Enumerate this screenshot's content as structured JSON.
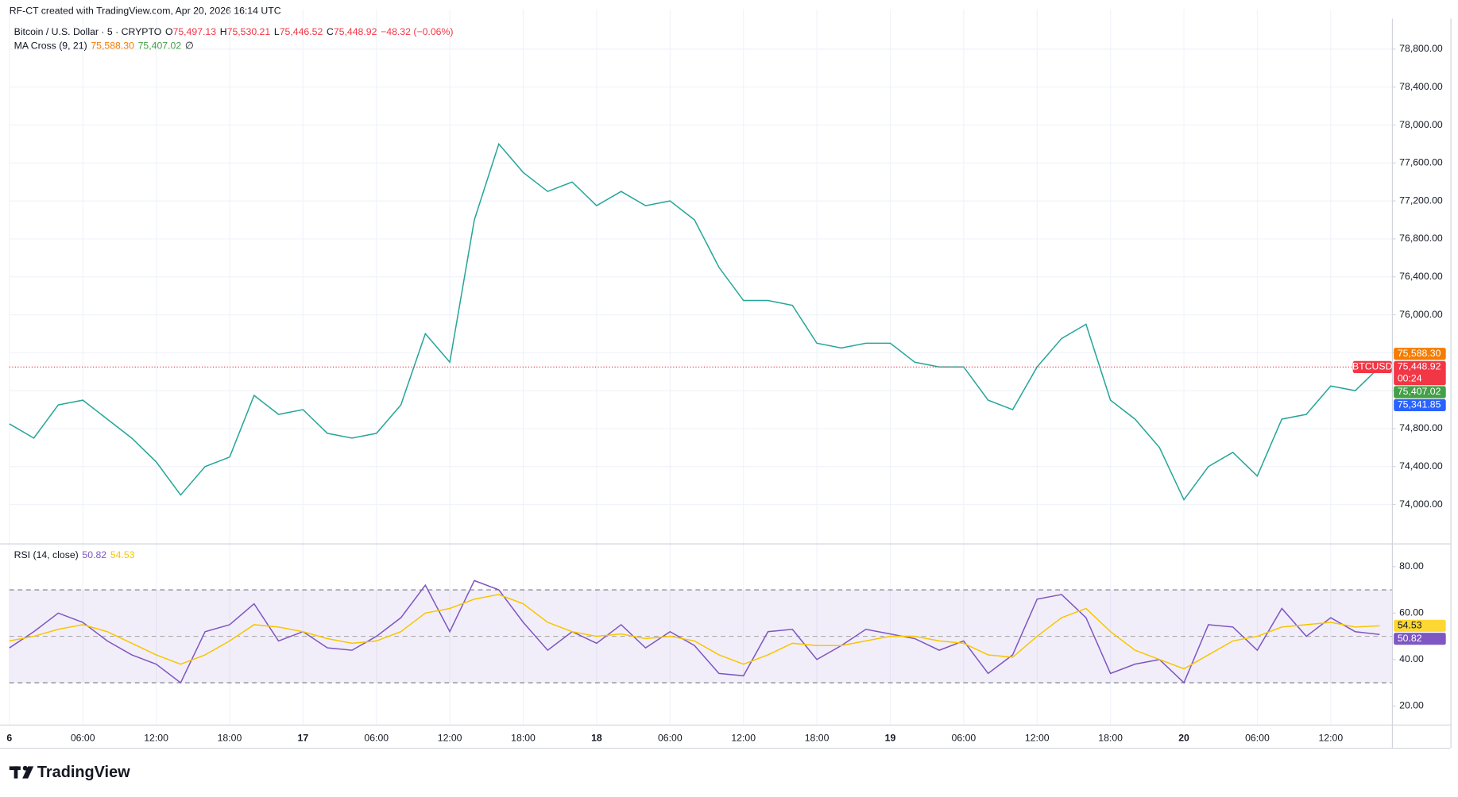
{
  "header": {
    "text": "RF-CT created with TradingView.com, Apr 20, 2026 16:14 UTC"
  },
  "chart_data": [
    {
      "type": "line",
      "title": "Bitcoin / U.S. Dollar · 5 · CRYPTO",
      "ohlc": [
        {
          "key": "O",
          "value": "75,497.13"
        },
        {
          "key": "H",
          "value": "75,530.21"
        },
        {
          "key": "L",
          "value": "75,446.52"
        },
        {
          "key": "C",
          "value": "75,448.92"
        }
      ],
      "change": "−48.32 (−0.06%)",
      "change_color": "#f23645",
      "indicator": {
        "title": "MA Cross (9, 21)",
        "values": [
          {
            "text": "75,588.30",
            "color": "#f57c00"
          },
          {
            "text": "75,407.02",
            "color": "#43a047"
          }
        ],
        "extra": "∅"
      },
      "x": [
        0,
        2,
        4,
        6,
        8,
        10,
        12,
        14,
        16,
        18,
        20,
        22,
        24,
        26,
        28,
        30,
        32,
        34,
        36,
        38,
        40,
        42,
        44,
        46,
        48,
        50,
        52,
        54,
        56,
        58,
        60,
        62,
        64,
        66,
        68,
        70,
        72,
        74,
        76,
        78,
        80,
        82,
        84,
        86,
        88,
        90,
        92,
        94,
        96,
        98,
        100,
        102,
        104,
        106,
        108,
        110,
        112
      ],
      "xlim": [
        0,
        113
      ],
      "xticks": [
        {
          "value": 0,
          "label": "6"
        },
        {
          "value": 6,
          "label": "06:00"
        },
        {
          "value": 12,
          "label": "12:00"
        },
        {
          "value": 18,
          "label": "18:00"
        },
        {
          "value": 24,
          "label": "17"
        },
        {
          "value": 30,
          "label": "06:00"
        },
        {
          "value": 36,
          "label": "12:00"
        },
        {
          "value": 42,
          "label": "18:00"
        },
        {
          "value": 48,
          "label": "18"
        },
        {
          "value": 54,
          "label": "06:00"
        },
        {
          "value": 60,
          "label": "12:00"
        },
        {
          "value": 66,
          "label": "18:00"
        },
        {
          "value": 72,
          "label": "19"
        },
        {
          "value": 78,
          "label": "06:00"
        },
        {
          "value": 84,
          "label": "12:00"
        },
        {
          "value": 90,
          "label": "18:00"
        },
        {
          "value": 96,
          "label": "20"
        },
        {
          "value": 102,
          "label": "06:00"
        },
        {
          "value": 108,
          "label": "12:00"
        }
      ],
      "series": [
        {
          "color": "#26a69a",
          "values": [
            74850,
            74700,
            75050,
            75100,
            74900,
            74700,
            74450,
            74100,
            74400,
            74500,
            75150,
            74950,
            75000,
            74750,
            74700,
            74750,
            75050,
            75800,
            75500,
            77000,
            77800,
            77500,
            77300,
            77400,
            77150,
            77300,
            77150,
            77200,
            77000,
            76500,
            76150,
            76150,
            76100,
            75700,
            75650,
            75700,
            75700,
            75500,
            75450,
            75450,
            75100,
            75000,
            75450,
            75750,
            75900,
            75100,
            74900,
            74600,
            74050,
            74400,
            74550,
            74300,
            74900,
            74950,
            75250,
            75200,
            75448.92
          ]
        }
      ],
      "ylim": [
        73590,
        79220
      ],
      "yticks": [
        {
          "value": 74000,
          "label": "74,000.00"
        },
        {
          "value": 74400,
          "label": "74,400.00"
        },
        {
          "value": 74800,
          "label": "74,800.00"
        },
        {
          "value": 75200,
          "label": "75,200.00"
        },
        {
          "value": 75600,
          "label": "75,600.00"
        },
        {
          "value": 76000,
          "label": "76,000.00"
        },
        {
          "value": 76400,
          "label": "76,400.00"
        },
        {
          "value": 76800,
          "label": "76,800.00"
        },
        {
          "value": 77200,
          "label": "77,200.00"
        },
        {
          "value": 77600,
          "label": "77,600.00"
        },
        {
          "value": 78000,
          "label": "78,000.00"
        },
        {
          "value": 78400,
          "label": "78,400.00"
        },
        {
          "value": 78800,
          "label": "78,800.00"
        }
      ],
      "grid": true,
      "price_tags": [
        {
          "value": 75588.3,
          "label": "75,588.30",
          "color": "#f57c00"
        },
        {
          "value": 75448.92,
          "label": "75,448.92",
          "color": "#f23645",
          "symbol": "BTCUSD",
          "countdown": "00:24"
        },
        {
          "value": 75407.02,
          "label": "75,407.02",
          "color": "#43a047"
        },
        {
          "value": 75341.85,
          "label": "75,341.85",
          "color": "#2962ff"
        }
      ]
    },
    {
      "type": "line",
      "title": "RSI (14, close)",
      "legend_values": [
        {
          "text": "50.82",
          "color": "#7e57c2"
        },
        {
          "text": "54.53",
          "color": "#f7c600"
        }
      ],
      "series": [
        {
          "color": "#7e57c2",
          "values": [
            45,
            52,
            60,
            56,
            48,
            42,
            38,
            30,
            52,
            55,
            64,
            48,
            52,
            45,
            44,
            50,
            58,
            72,
            52,
            74,
            70,
            56,
            44,
            52,
            47,
            55,
            45,
            52,
            46,
            34,
            33,
            52,
            53,
            40,
            46,
            53,
            51,
            49,
            44,
            48,
            34,
            42,
            66,
            68,
            58,
            34,
            38,
            40,
            30,
            55,
            54,
            44,
            62,
            50,
            58,
            52,
            50.82
          ]
        },
        {
          "color": "#f7c600",
          "values": [
            48,
            50,
            53,
            55,
            52,
            47,
            42,
            38,
            42,
            48,
            55,
            54,
            52,
            49,
            47,
            48,
            52,
            60,
            62,
            66,
            68,
            64,
            56,
            52,
            50,
            51,
            49,
            50,
            48,
            42,
            38,
            42,
            47,
            46,
            46,
            48,
            50,
            50,
            48,
            47,
            42,
            41,
            50,
            58,
            62,
            52,
            44,
            40,
            36,
            42,
            48,
            50,
            54,
            55,
            56,
            54,
            54.53
          ]
        }
      ],
      "ylim": [
        12,
        88
      ],
      "yticks": [
        {
          "value": 20,
          "label": "20.00"
        },
        {
          "value": 40,
          "label": "40.00"
        },
        {
          "value": 60,
          "label": "60.00"
        },
        {
          "value": 80,
          "label": "80.00"
        }
      ],
      "band": [
        30,
        70
      ],
      "midline": 50,
      "tags": [
        {
          "value": 54.53,
          "label": "54.53",
          "color": "#fdd835"
        },
        {
          "value": 50.82,
          "label": "50.82",
          "color": "#7e57c2"
        }
      ]
    }
  ],
  "footer": {
    "logo": "TradingView"
  }
}
